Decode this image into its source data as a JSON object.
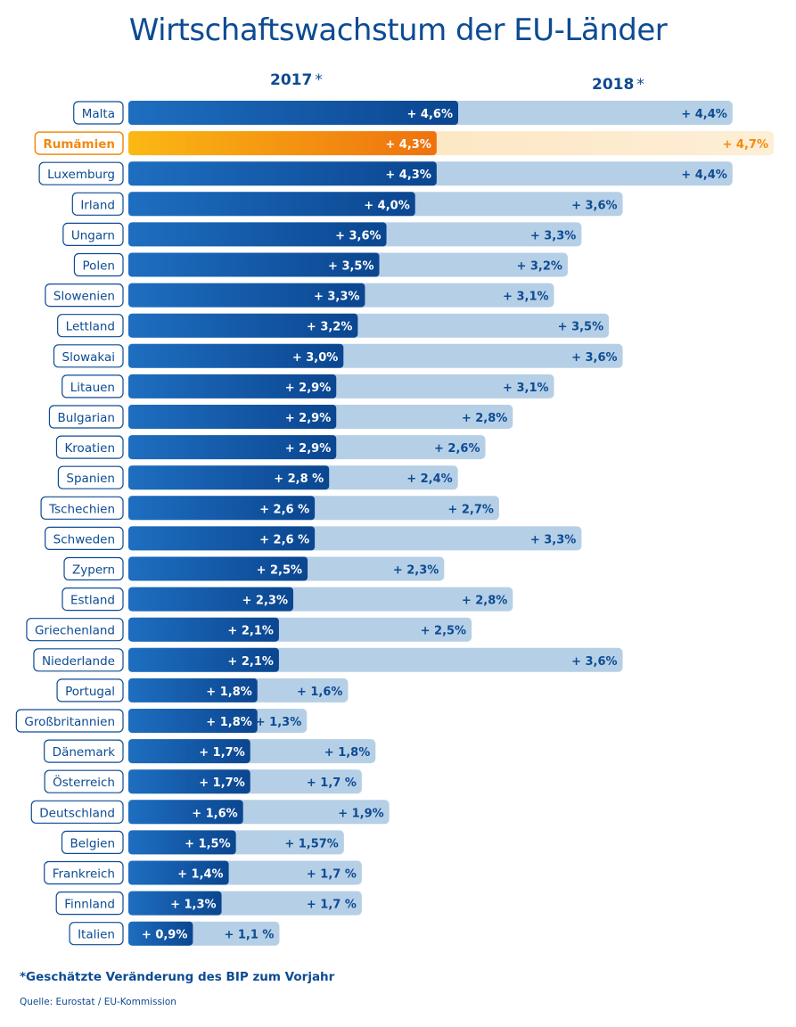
{
  "title": "Wirtschaftswachstum der EU-Länder",
  "legend": {
    "y2017": "2017",
    "y2018": "2018",
    "star": "*"
  },
  "footnote": "*Geschätzte Veränderung des BIP zum Vorjahr",
  "source": "Quelle: Eurostat / EU-Kommission",
  "colors": {
    "bar2017": "#0d4f99",
    "bar2018": "#b5cfe6",
    "highlight2017": "#f07f13",
    "highlight2018": "#fde6c0",
    "label": "#0d4b93",
    "highlight_label": "#f28a0f"
  },
  "chart_data": {
    "type": "bar",
    "orientation": "horizontal",
    "title": "Wirtschaftswachstum der EU-Länder",
    "series": [
      {
        "name": "2017*",
        "values": [
          4.6,
          4.3,
          4.3,
          4.0,
          3.6,
          3.5,
          3.3,
          3.2,
          3.0,
          2.9,
          2.9,
          2.9,
          2.8,
          2.6,
          2.6,
          2.5,
          2.3,
          2.1,
          2.1,
          1.8,
          1.8,
          1.7,
          1.7,
          1.6,
          1.5,
          1.4,
          1.3,
          0.9
        ]
      },
      {
        "name": "2018*",
        "values": [
          4.4,
          4.7,
          4.4,
          3.6,
          3.3,
          3.2,
          3.1,
          3.5,
          3.6,
          3.1,
          2.8,
          2.6,
          2.4,
          2.7,
          3.3,
          2.3,
          2.8,
          2.5,
          3.6,
          1.6,
          1.3,
          1.8,
          1.7,
          1.9,
          1.57,
          1.7,
          1.7,
          1.1
        ]
      }
    ],
    "rows": [
      {
        "country": "Malta",
        "v2017": 4.6,
        "label2017": "+ 4,6%",
        "v2018": 4.4,
        "label2018": "+ 4,4%"
      },
      {
        "country": "Rumämien",
        "v2017": 4.3,
        "label2017": "+ 4,3%",
        "v2018": 4.7,
        "label2018": "+ 4,7%",
        "highlight": true
      },
      {
        "country": "Luxemburg",
        "v2017": 4.3,
        "label2017": "+ 4,3%",
        "v2018": 4.4,
        "label2018": "+ 4,4%"
      },
      {
        "country": "Irland",
        "v2017": 4.0,
        "label2017": "+ 4,0%",
        "v2018": 3.6,
        "label2018": "+ 3,6%"
      },
      {
        "country": "Ungarn",
        "v2017": 3.6,
        "label2017": "+ 3,6%",
        "v2018": 3.3,
        "label2018": "+ 3,3%"
      },
      {
        "country": "Polen",
        "v2017": 3.5,
        "label2017": "+ 3,5%",
        "v2018": 3.2,
        "label2018": "+ 3,2%"
      },
      {
        "country": "Slowenien",
        "v2017": 3.3,
        "label2017": "+ 3,3%",
        "v2018": 3.1,
        "label2018": "+ 3,1%"
      },
      {
        "country": "Lettland",
        "v2017": 3.2,
        "label2017": "+ 3,2%",
        "v2018": 3.5,
        "label2018": "+ 3,5%"
      },
      {
        "country": "Slowakai",
        "v2017": 3.0,
        "label2017": "+ 3,0%",
        "v2018": 3.6,
        "label2018": "+ 3,6%"
      },
      {
        "country": "Litauen",
        "v2017": 2.9,
        "label2017": "+ 2,9%",
        "v2018": 3.1,
        "label2018": "+ 3,1%"
      },
      {
        "country": "Bulgarian",
        "v2017": 2.9,
        "label2017": "+ 2,9%",
        "v2018": 2.8,
        "label2018": "+ 2,8%"
      },
      {
        "country": "Kroatien",
        "v2017": 2.9,
        "label2017": "+ 2,9%",
        "v2018": 2.6,
        "label2018": "+ 2,6%"
      },
      {
        "country": "Spanien",
        "v2017": 2.8,
        "label2017": "+ 2,8 %",
        "v2018": 2.4,
        "label2018": "+ 2,4%"
      },
      {
        "country": "Tschechien",
        "v2017": 2.6,
        "label2017": "+ 2,6 %",
        "v2018": 2.7,
        "label2018": "+ 2,7%"
      },
      {
        "country": "Schweden",
        "v2017": 2.6,
        "label2017": "+ 2,6 %",
        "v2018": 3.3,
        "label2018": "+ 3,3%"
      },
      {
        "country": "Zypern",
        "v2017": 2.5,
        "label2017": "+ 2,5%",
        "v2018": 2.3,
        "label2018": "+ 2,3%"
      },
      {
        "country": "Estland",
        "v2017": 2.3,
        "label2017": "+ 2,3%",
        "v2018": 2.8,
        "label2018": "+ 2,8%"
      },
      {
        "country": "Griechenland",
        "v2017": 2.1,
        "label2017": "+ 2,1%",
        "v2018": 2.5,
        "label2018": "+ 2,5%"
      },
      {
        "country": "Niederlande",
        "v2017": 2.1,
        "label2017": "+ 2,1%",
        "v2018": 3.6,
        "label2018": "+ 3,6%"
      },
      {
        "country": "Portugal",
        "v2017": 1.8,
        "label2017": "+ 1,8%",
        "v2018": 1.6,
        "label2018": "+ 1,6%"
      },
      {
        "country": "Großbritannien",
        "v2017": 1.8,
        "label2017": "+ 1,8%",
        "v2018": 1.3,
        "label2018": "+ 1,3%"
      },
      {
        "country": "Dänemark",
        "v2017": 1.7,
        "label2017": "+ 1,7%",
        "v2018": 1.8,
        "label2018": "+ 1,8%"
      },
      {
        "country": "Österreich",
        "v2017": 1.7,
        "label2017": "+ 1,7%",
        "v2018": 1.7,
        "label2018": "+ 1,7 %"
      },
      {
        "country": "Deutschland",
        "v2017": 1.6,
        "label2017": "+ 1,6%",
        "v2018": 1.9,
        "label2018": "+ 1,9%"
      },
      {
        "country": "Belgien",
        "v2017": 1.5,
        "label2017": "+ 1,5%",
        "v2018": 1.57,
        "label2018": "+ 1,57%"
      },
      {
        "country": "Frankreich",
        "v2017": 1.4,
        "label2017": "+ 1,4%",
        "v2018": 1.7,
        "label2018": "+ 1,7 %"
      },
      {
        "country": "Finnland",
        "v2017": 1.3,
        "label2017": "+ 1,3%",
        "v2018": 1.7,
        "label2018": "+ 1,7 %"
      },
      {
        "country": "Italien",
        "v2017": 0.9,
        "label2017": "+ 0,9%",
        "v2018": 1.1,
        "label2018": "+ 1,1 %"
      }
    ]
  }
}
